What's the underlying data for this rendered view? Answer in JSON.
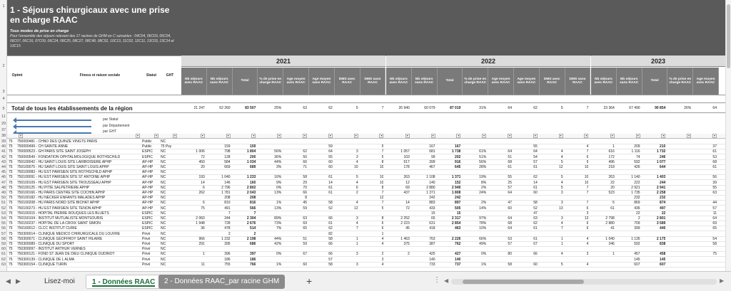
{
  "title": "1 - Séjours chirurgicaux avec une prise en charge RAAC",
  "subtitle1": "Tous modes de prise en charge",
  "subtitle2": "Pour l'ensemble des séjours relevant des 17 racines de GHM en C suivantes : 04C04, 06C03, 06C04, 06C07, 06C16, 07C09, 06C24, 08C25, 08C27, 08C48, 08C52, 10C13, 11C02, 12C11, 13C03, 13C14 et 13C15",
  "row_labels": {
    "r1": "1",
    "r2": "2",
    "r3": "3",
    "r4": "4",
    "r5": "5",
    "r11": "11",
    "r29": "29",
    "r37": "37",
    "r38": "38"
  },
  "headers": {
    "optmt": "Optmt",
    "finess": "Finess et raison sociale",
    "statut": "Statut",
    "ght": "GHT",
    "cols": [
      "Nb séjours avec RAAC",
      "Nb séjours sans RAAC",
      "Total",
      "% de prise en charge RAAC",
      "Age moyen avec RAAC",
      "Age moyen sans RAAC",
      "DMS avec RAAC",
      "DMS sans RAAC"
    ],
    "cols2023": [
      "Nb séjours avec RAAC",
      "Nb séjours sans RAAC",
      "Total",
      "% de prise en charge RAAC",
      "Age moyen avec RAAC"
    ]
  },
  "years": [
    "2021",
    "2022",
    "2023"
  ],
  "total": {
    "label": "Total de tous les établissements de la région",
    "y2021": [
      "21 247",
      "62 260",
      "83 507",
      "25%",
      "63",
      "62",
      "5",
      "7"
    ],
    "y2022": [
      "26 940",
      "60 079",
      "87 019",
      "31%",
      "64",
      "62",
      "5",
      "7"
    ],
    "y2023": [
      "23 364",
      "67 490",
      "90 854",
      "26%",
      "64"
    ]
  },
  "nav": {
    "statut": "par Statut",
    "departement": "par Département",
    "ght": "par GHT"
  },
  "rows": [
    {
      "n": "39",
      "d": "75",
      "f": "750000481 - CHNO DES QUINZE VINGTS PARIS",
      "s": "Public",
      "g": "NC",
      "v21": [
        "",
        "",
        "",
        "",
        "",
        "",
        "",
        ""
      ],
      "v22": [
        "",
        "",
        "",
        "",
        "",
        "",
        "",
        ""
      ],
      "v23": [
        "",
        "",
        "",
        "",
        ""
      ]
    },
    {
      "n": "40",
      "d": "75",
      "f": "750000499 - CH SAINTE ANNE",
      "s": "Public",
      "g": "75 Psy",
      "v21": [
        "",
        "159",
        "159",
        "",
        "",
        "59",
        "",
        "5"
      ],
      "v22": [
        "",
        "167",
        "167",
        "",
        "",
        "55",
        "",
        "4"
      ],
      "v23": [
        "1",
        "209",
        "210",
        "",
        "37"
      ]
    },
    {
      "n": "41",
      "d": "75",
      "f": "750000523 - GH PARIS SITE SAINT JOSEPH",
      "s": "ESPIC",
      "g": "NC",
      "v21": [
        "1 006",
        "798",
        "1 804",
        "56%",
        "62",
        "64",
        "3",
        "7"
      ],
      "v22": [
        "1 057",
        "681",
        "1 738",
        "61%",
        "64",
        "64",
        "4",
        "7"
      ],
      "v23": [
        "616",
        "1 116",
        "1 732",
        "",
        "61"
      ]
    },
    {
      "n": "42",
      "d": "75",
      "f": "750000549 - FONDATION OPHTALMOLOGIQUE ROTHSCHILD",
      "s": "ESPIC",
      "g": "NC",
      "v21": [
        "72",
        "128",
        "200",
        "36%",
        "50",
        "55",
        "3",
        "5"
      ],
      "v22": [
        "103",
        "99",
        "202",
        "51%",
        "51",
        "54",
        "4",
        "6"
      ],
      "v23": [
        "172",
        "74",
        "246",
        "",
        "53"
      ]
    },
    {
      "n": "43",
      "d": "75",
      "f": "750100042 - HU SAINT LOUIS SITE LARIBOISIERE APHP",
      "s": "AP-HP",
      "g": "NC",
      "v21": [
        "450",
        "584",
        "1 034",
        "44%",
        "66",
        "60",
        "4",
        "8"
      ],
      "v22": [
        "517",
        "399",
        "916",
        "56%",
        "68",
        "57",
        "5",
        "9"
      ],
      "v23": [
        "496",
        "592",
        "1 077",
        "",
        "68"
      ]
    },
    {
      "n": "44",
      "d": "75",
      "f": "750100075 - HU SAINT LOUIS SITE SAINT LOUIS APHP",
      "s": "AP-HP",
      "g": "NC",
      "v21": [
        "20",
        "669",
        "689",
        "3%",
        "71",
        "60",
        "10",
        "10"
      ],
      "v22": [
        "178",
        "467",
        "645",
        "28%",
        "61",
        "61",
        "12",
        "10"
      ],
      "v23": [
        "218",
        "426",
        "644",
        "",
        "61"
      ]
    },
    {
      "n": "45",
      "d": "75",
      "f": "750100083 - HU EST PARISIEN SITE ROTHSCHILD APHP",
      "s": "AP-HP",
      "g": "NC",
      "v21": [
        "",
        "",
        "",
        "",
        "",
        "",
        "",
        ""
      ],
      "v22": [
        "",
        "",
        "",
        "",
        "",
        "",
        "",
        ""
      ],
      "v23": [
        "",
        "",
        "",
        "",
        ""
      ]
    },
    {
      "n": "46",
      "d": "75",
      "f": "750100091 - HU EST PARISIEN SITE ST ANTOINE APHP",
      "s": "AP-HP",
      "g": "NC",
      "v21": [
        "193",
        "1 040",
        "1 233",
        "16%",
        "58",
        "61",
        "5",
        "10"
      ],
      "v22": [
        "263",
        "1 108",
        "1 371",
        "19%",
        "55",
        "62",
        "5",
        "10"
      ],
      "v23": [
        "263",
        "1 140",
        "1 403",
        "",
        "56"
      ]
    },
    {
      "n": "47",
      "d": "75",
      "f": "750100109 - HU EST PARISIEN SITE TROUSSEAU APHP",
      "s": "AP-HP",
      "g": "NC",
      "v21": [
        "14",
        "146",
        "160",
        "9%",
        "29",
        "14",
        "4",
        "10"
      ],
      "v22": [
        "12",
        "140",
        "152",
        "8%",
        "25",
        "14",
        "4",
        "10"
      ],
      "v23": [
        "22",
        "222",
        "244",
        "",
        "39"
      ]
    },
    {
      "n": "48",
      "d": "75",
      "f": "750100125 - HU PITIE SALPETRIERE APHP",
      "s": "AP-HP",
      "g": "NC",
      "v21": [
        "6",
        "2 796",
        "2 802",
        "0%",
        "70",
        "61",
        "6",
        "8"
      ],
      "v22": [
        "69",
        "2 880",
        "2 949",
        "2%",
        "57",
        "61",
        "5",
        "7"
      ],
      "v23": [
        "20",
        "2 921",
        "2 941",
        "",
        "55"
      ]
    },
    {
      "n": "49",
      "d": "75",
      "f": "750100166 - HU PARIS CENTRE SITE COCHIN APHP",
      "s": "AP-HP",
      "g": "NC",
      "v21": [
        "262",
        "1 781",
        "2 043",
        "13%",
        "66",
        "61",
        "2",
        "7"
      ],
      "v22": [
        "437",
        "1 371",
        "1 808",
        "24%",
        "64",
        "60",
        "3",
        "7"
      ],
      "v23": [
        "523",
        "1 735",
        "2 258",
        "",
        "63"
      ]
    },
    {
      "n": "50",
      "d": "75",
      "f": "750100182 - HU NECKER ENFANTS MALADES APHP",
      "s": "AP-HP",
      "g": "NC",
      "v21": [
        "",
        "208",
        "208",
        "",
        "8",
        "",
        "",
        "12"
      ],
      "v22": [
        "",
        "242",
        "242",
        "",
        "",
        "",
        "",
        ""
      ],
      "v23": [
        "",
        "232",
        "232",
        "",
        ""
      ]
    },
    {
      "n": "51",
      "d": "75",
      "f": "750100208 - HU PARIS NORD SITE BICHAT APHP",
      "s": "AP-HP",
      "g": "NC",
      "v21": [
        "6",
        "810",
        "816",
        "1%",
        "45",
        "58",
        "4",
        "7"
      ],
      "v22": [
        "14",
        "883",
        "897",
        "2%",
        "47",
        "58",
        "3",
        "7"
      ],
      "v23": [
        "5",
        "869",
        "874",
        "",
        "44"
      ]
    },
    {
      "n": "52",
      "d": "75",
      "f": "750100273 - HU EST PARISIEN SITE TENON APHP",
      "s": "AP-HP",
      "g": "NC",
      "v21": [
        "75",
        "491",
        "566",
        "13%",
        "59",
        "52",
        "12",
        "5"
      ],
      "v22": [
        "72",
        "433",
        "505",
        "14%",
        "60",
        "52",
        "13",
        "6"
      ],
      "v23": [
        "61",
        "436",
        "497",
        "",
        "57"
      ]
    },
    {
      "n": "53",
      "d": "75",
      "f": "750100315 - HOPITAL PIERRE ROUQUES LES BLUETS",
      "s": "ESPIC",
      "g": "NC",
      "v21": [
        "",
        "7",
        "7",
        "",
        "",
        "",
        "",
        ""
      ],
      "v22": [
        "",
        "15",
        "15",
        "",
        "",
        "47",
        "",
        "3"
      ],
      "v23": [
        "",
        "22",
        "22",
        "",
        "11"
      ]
    },
    {
      "n": "54",
      "d": "75",
      "f": "750150104 - INSTITUT MUTUALISTE MONTSOURIS",
      "s": "ESPIC",
      "g": "NC",
      "v21": [
        "2 060",
        "244",
        "2 304",
        "89%",
        "63",
        "66",
        "3",
        "8"
      ],
      "v22": [
        "2 252",
        "65",
        "2 317",
        "97%",
        "64",
        "63",
        "3",
        "13"
      ],
      "v23": [
        "2 798",
        "2",
        "2 801",
        "",
        "64"
      ]
    },
    {
      "n": "55",
      "d": "75",
      "f": "750150237 - HOPITAL DE LA CROIX SAINT SIMON",
      "s": "ESPIC",
      "g": "NC",
      "v21": [
        "1 948",
        "728",
        "2 676",
        "73%",
        "69",
        "61",
        "4",
        "6"
      ],
      "v22": [
        "2 223",
        "631",
        "2 854",
        "78%",
        "68",
        "62",
        "4",
        "6"
      ],
      "v23": [
        "2 880",
        "709",
        "3 589",
        "",
        "69"
      ]
    },
    {
      "n": "56",
      "d": "75",
      "f": "750160012 - CLCC INSTITUT CURIE",
      "s": "ESPIC",
      "g": "NC",
      "v21": [
        "36",
        "478",
        "514",
        "7%",
        "65",
        "62",
        "7",
        "6"
      ],
      "v22": [
        "45",
        "418",
        "463",
        "10%",
        "64",
        "61",
        "7",
        "6"
      ],
      "v23": [
        "41",
        "399",
        "440",
        "",
        "65"
      ]
    },
    {
      "n": "57",
      "d": "75",
      "f": "750300014 - CLINIQUE MEDICO CHIRURGICALE DU LOUVRE",
      "s": "Privé",
      "g": "NC",
      "v21": [
        "",
        "2",
        "2",
        "",
        "",
        "82",
        "",
        "1"
      ],
      "v22": [
        "",
        "",
        "",
        "",
        "",
        "",
        "",
        ""
      ],
      "v23": [
        "",
        "",
        "",
        "",
        ""
      ]
    },
    {
      "n": "58",
      "d": "75",
      "f": "750300071 - CLINIQUE GEOFFROY SAINT HILAIRE",
      "s": "Privé",
      "g": "NC",
      "v21": [
        "966",
        "1 232",
        "2 198",
        "44%",
        "51",
        "58",
        "1",
        "4"
      ],
      "v22": [
        "1 463",
        "763",
        "2 226",
        "66%",
        "53",
        "61",
        "1",
        "4"
      ],
      "v23": [
        "1 040",
        "1 135",
        "2 175",
        "",
        "54"
      ]
    },
    {
      "n": "59",
      "d": "75",
      "f": "750300089 - CLINIQUE DU SPORT",
      "s": "Privé",
      "g": "NC",
      "v21": [
        "291",
        "395",
        "686",
        "42%",
        "59",
        "66",
        "1",
        "4"
      ],
      "v22": [
        "375",
        "387",
        "762",
        "49%",
        "57",
        "67",
        "1",
        "4"
      ],
      "v23": [
        "246",
        "592",
        "838",
        "",
        "58"
      ]
    },
    {
      "n": "60",
      "d": "75",
      "f": "750300097 - INSTITUT ARTHUR VERNES",
      "s": "Privé",
      "g": "NC",
      "v21": [
        "",
        "",
        "",
        "",
        "",
        "",
        "",
        ""
      ],
      "v22": [
        "",
        "",
        "",
        "",
        "",
        "",
        "",
        ""
      ],
      "v23": [
        "",
        "",
        "",
        "",
        ""
      ]
    },
    {
      "n": "61",
      "d": "75",
      "f": "750300121 - FOND ST JEAN DE DIEU CLINIQUE OUDINOT",
      "s": "Privé",
      "g": "NC",
      "v21": [
        "1",
        "396",
        "397",
        "0%",
        "67",
        "66",
        "3",
        "2"
      ],
      "v22": [
        "2",
        "425",
        "427",
        "0%",
        "80",
        "66",
        "4",
        "3"
      ],
      "v23": [
        "1",
        "457",
        "458",
        "",
        "75"
      ]
    },
    {
      "n": "62",
      "d": "75",
      "f": "750300139 - CLINIQUE DE L ALMA",
      "s": "Privé",
      "g": "NC",
      "v21": [
        "",
        "186",
        "186",
        "",
        "",
        "57",
        "",
        "3"
      ],
      "v22": [
        "",
        "140",
        "140",
        "",
        "",
        "",
        "",
        ""
      ],
      "v23": [
        "",
        "145",
        "145",
        "",
        ""
      ]
    },
    {
      "n": "63",
      "d": "75",
      "f": "750300154 - CLINIQUE TURIN",
      "s": "Privé",
      "g": "NC",
      "v21": [
        "11",
        "755",
        "766",
        "1%",
        "60",
        "58",
        "3",
        "4"
      ],
      "v22": [
        "",
        "733",
        "737",
        "1%",
        "58",
        "60",
        "5",
        "4"
      ],
      "v23": [
        "",
        "607",
        "607",
        "",
        ""
      ]
    }
  ],
  "tabs": {
    "readme": "Lisez-moi",
    "data": "1 - Données RAAC",
    "racine": "2 - Données RAAC_par racine GHM"
  }
}
